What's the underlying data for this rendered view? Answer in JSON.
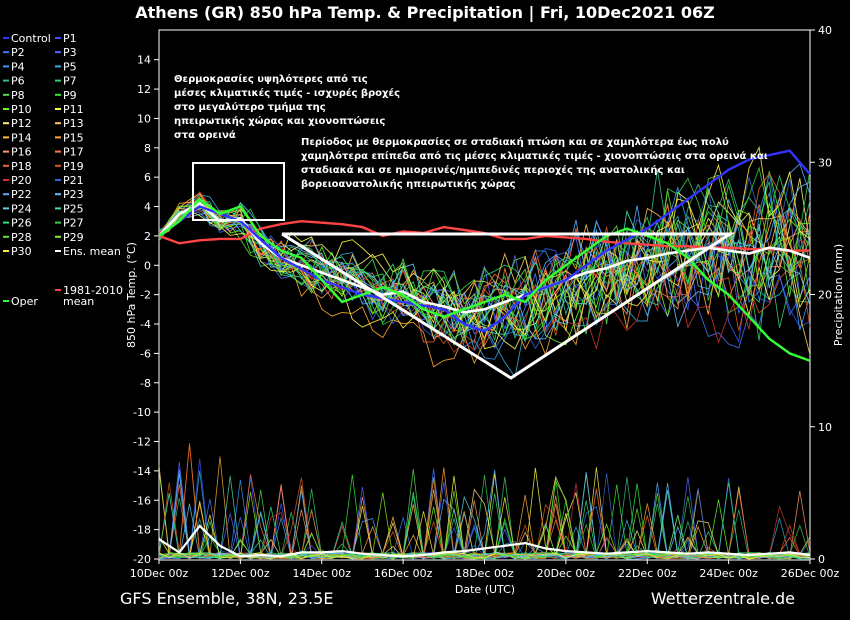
{
  "chart_data": {
    "type": "line",
    "title": "Athens  (GR)  850 hPa Temp. & Precipitation | Fri, 10Dec2021 06Z",
    "xlabel": "Date (UTC)",
    "ylabel": "850 hPa Temp. (°C)",
    "y2label": "Precipitation (mm)",
    "ylim": [
      -20,
      15
    ],
    "y2lim": [
      0,
      40
    ],
    "x_ticks": [
      "10Dec 00z",
      "12Dec 00z",
      "14Dec 00z",
      "16Dec 00z",
      "18Dec 00z",
      "20Dec 00z",
      "22Dec 00z",
      "24Dec 00z",
      "26Dec 00z"
    ],
    "y_ticks": [
      14,
      12,
      10,
      8,
      6,
      4,
      2,
      0,
      -2,
      -4,
      -6,
      -8,
      -10,
      -12,
      -14,
      -16,
      -18,
      -20
    ],
    "y2_ticks": [
      40,
      30,
      20,
      10,
      0
    ],
    "grid": false,
    "legend_position": "left",
    "legend": [
      {
        "name": "Control",
        "color": "#3333ff"
      },
      {
        "name": "P1",
        "color": "#3355ff"
      },
      {
        "name": "P2",
        "color": "#4477ff"
      },
      {
        "name": "P3",
        "color": "#5566ff"
      },
      {
        "name": "P4",
        "color": "#3399ff"
      },
      {
        "name": "P5",
        "color": "#33aadd"
      },
      {
        "name": "P6",
        "color": "#33bb88"
      },
      {
        "name": "P7",
        "color": "#33cc66"
      },
      {
        "name": "P8",
        "color": "#55dd55"
      },
      {
        "name": "P9",
        "color": "#33ee33"
      },
      {
        "name": "P10",
        "color": "#66ff22"
      },
      {
        "name": "P11",
        "color": "#ffff44"
      },
      {
        "name": "P12",
        "color": "#ffee77"
      },
      {
        "name": "P13",
        "color": "#ffcc55"
      },
      {
        "name": "P14",
        "color": "#ffbb44"
      },
      {
        "name": "P15",
        "color": "#ffaa33"
      },
      {
        "name": "P16",
        "color": "#ff9966"
      },
      {
        "name": "P17",
        "color": "#ff7744"
      },
      {
        "name": "P18",
        "color": "#ee6633"
      },
      {
        "name": "P19",
        "color": "#dd5522"
      },
      {
        "name": "P20",
        "color": "#cc3333"
      },
      {
        "name": "P21",
        "color": "#3366cc"
      },
      {
        "name": "P22",
        "color": "#55aaff"
      },
      {
        "name": "P23",
        "color": "#66bbff"
      },
      {
        "name": "P24",
        "color": "#66ccee"
      },
      {
        "name": "P25",
        "color": "#44ddaa"
      },
      {
        "name": "P26",
        "color": "#33dd77"
      },
      {
        "name": "P27",
        "color": "#33cc44"
      },
      {
        "name": "P28",
        "color": "#66dd33"
      },
      {
        "name": "P29",
        "color": "#88ee22"
      },
      {
        "name": "P30",
        "color": "#ffee44"
      },
      {
        "name": "Ens. mean",
        "color": "#ffffff"
      },
      {
        "name": "1981-2010 mean",
        "color": "#ff4444"
      },
      {
        "name": "Oper",
        "color": "#33ff33"
      }
    ],
    "series": [
      {
        "name": "1981-2010 mean",
        "unit": "°C",
        "values": [
          [
            0,
            2
          ],
          [
            0.5,
            1.5
          ],
          [
            1,
            1.7
          ],
          [
            1.5,
            1.8
          ],
          [
            2,
            1.8
          ],
          [
            2.5,
            2.5
          ],
          [
            3,
            2.8
          ],
          [
            3.5,
            3.0
          ],
          [
            4,
            2.9
          ],
          [
            4.5,
            2.8
          ],
          [
            5,
            2.6
          ],
          [
            5.5,
            2.0
          ],
          [
            6,
            2.3
          ],
          [
            6.5,
            2.2
          ],
          [
            7,
            2.6
          ],
          [
            7.5,
            2.4
          ],
          [
            8,
            2.2
          ],
          [
            8.5,
            1.8
          ],
          [
            9,
            1.8
          ],
          [
            9.5,
            2.0
          ],
          [
            10,
            1.9
          ],
          [
            10.5,
            1.8
          ],
          [
            11,
            1.6
          ],
          [
            11.5,
            1.5
          ],
          [
            12,
            1.4
          ],
          [
            12.5,
            1.3
          ],
          [
            13,
            1.3
          ],
          [
            13.5,
            1.2
          ],
          [
            14,
            1.2
          ],
          [
            14.5,
            1.1
          ],
          [
            15,
            1.1
          ],
          [
            15.5,
            1.0
          ],
          [
            16,
            1.0
          ]
        ]
      },
      {
        "name": "Ens. mean",
        "unit": "°C",
        "values": [
          [
            0,
            2.0
          ],
          [
            0.5,
            3.5
          ],
          [
            1,
            4.2
          ],
          [
            1.5,
            3.0
          ],
          [
            2,
            3.2
          ],
          [
            2.5,
            1.5
          ],
          [
            3,
            0.5
          ],
          [
            3.5,
            0
          ],
          [
            4,
            -0.5
          ],
          [
            4.5,
            -1.0
          ],
          [
            5,
            -1.5
          ],
          [
            5.5,
            -2.0
          ],
          [
            6,
            -1.8
          ],
          [
            6.5,
            -2.5
          ],
          [
            7,
            -2.8
          ],
          [
            7.5,
            -3.2
          ],
          [
            8,
            -3.0
          ],
          [
            8.5,
            -2.5
          ],
          [
            9,
            -2.0
          ],
          [
            9.5,
            -1.5
          ],
          [
            10,
            -1.0
          ],
          [
            10.5,
            -0.5
          ],
          [
            11,
            -0.2
          ],
          [
            11.5,
            0.3
          ],
          [
            12,
            0.5
          ],
          [
            12.5,
            0.8
          ],
          [
            13,
            1.0
          ],
          [
            13.5,
            1.2
          ],
          [
            14,
            1.0
          ],
          [
            14.5,
            0.8
          ],
          [
            15,
            1.2
          ],
          [
            15.5,
            1.0
          ],
          [
            16,
            0.5
          ]
        ]
      },
      {
        "name": "Control",
        "unit": "°C",
        "values": [
          [
            0,
            2
          ],
          [
            1,
            4
          ],
          [
            2,
            3
          ],
          [
            3,
            0.5
          ],
          [
            4,
            -1.0
          ],
          [
            5,
            -2.0
          ],
          [
            6,
            -2.5
          ],
          [
            7,
            -3.0
          ],
          [
            7.5,
            -4.0
          ],
          [
            8,
            -4.5
          ],
          [
            8.5,
            -3.5
          ],
          [
            9,
            -2.0
          ],
          [
            10,
            -1.0
          ],
          [
            11,
            1.0
          ],
          [
            12,
            2.5
          ],
          [
            12.5,
            3.5
          ],
          [
            13,
            4.5
          ],
          [
            13.5,
            5.5
          ],
          [
            14,
            6.5
          ],
          [
            14.5,
            7.2
          ],
          [
            15,
            7.5
          ],
          [
            15.5,
            7.8
          ],
          [
            16,
            6.2
          ]
        ]
      },
      {
        "name": "Oper",
        "unit": "°C",
        "values": [
          [
            0,
            2
          ],
          [
            0.5,
            3
          ],
          [
            1,
            4.5
          ],
          [
            1.5,
            3.5
          ],
          [
            2,
            4.0
          ],
          [
            2.5,
            2.0
          ],
          [
            3,
            1.0
          ],
          [
            3.5,
            0.5
          ],
          [
            4,
            -1.0
          ],
          [
            4.5,
            -2.5
          ],
          [
            5,
            -2.0
          ],
          [
            5.5,
            -1.5
          ],
          [
            6,
            -2.0
          ],
          [
            6.5,
            -3.0
          ],
          [
            7,
            -3.5
          ],
          [
            7.5,
            -3.0
          ],
          [
            8,
            -2.5
          ],
          [
            8.5,
            -2.0
          ],
          [
            9,
            -2.5
          ],
          [
            9.5,
            -1.0
          ],
          [
            10,
            0
          ],
          [
            10.5,
            1.0
          ],
          [
            11,
            2.0
          ],
          [
            11.5,
            2.5
          ],
          [
            12,
            2.0
          ],
          [
            12.5,
            1.5
          ],
          [
            13,
            0.5
          ],
          [
            13.5,
            -1.0
          ],
          [
            14,
            -2.0
          ],
          [
            14.5,
            -3.5
          ],
          [
            15,
            -5.0
          ],
          [
            15.5,
            -6.0
          ],
          [
            16,
            -6.5
          ]
        ]
      }
    ],
    "precipitation_mean": {
      "name": "Ens. mean",
      "unit": "mm",
      "values": [
        [
          0,
          1.5
        ],
        [
          0.5,
          0.5
        ],
        [
          1,
          2.5
        ],
        [
          1.5,
          1.0
        ],
        [
          2,
          0.2
        ],
        [
          2.5,
          0.3
        ],
        [
          3,
          0.2
        ],
        [
          3.5,
          0.5
        ],
        [
          4,
          0.5
        ],
        [
          4.5,
          0.6
        ],
        [
          5,
          0.4
        ],
        [
          5.5,
          0.3
        ],
        [
          6,
          0.2
        ],
        [
          6.5,
          0.3
        ],
        [
          7,
          0.5
        ],
        [
          7.5,
          0.6
        ],
        [
          8,
          0.8
        ],
        [
          8.5,
          1.0
        ],
        [
          9,
          1.2
        ],
        [
          9.5,
          0.8
        ],
        [
          10,
          0.6
        ],
        [
          10.5,
          0.5
        ],
        [
          11,
          0.4
        ],
        [
          11.5,
          0.5
        ],
        [
          12,
          0.6
        ],
        [
          12.5,
          0.5
        ],
        [
          13,
          0.4
        ],
        [
          13.5,
          0.5
        ],
        [
          14,
          0.4
        ],
        [
          14.5,
          0.3
        ],
        [
          15,
          0.4
        ],
        [
          15.5,
          0.5
        ],
        [
          16,
          0.3
        ]
      ]
    },
    "annotations": {
      "note1": [
        "Θερμοκρασίες υψηλότερες από τις",
        "μέσες κλιματικές τιμές - ισχυρές βροχές",
        "στο μεγαλύτερο τμήμα της",
        "ηπειρωτικής χώρας και χιονοπτώσεις",
        "στα ορεινά"
      ],
      "note2": [
        "Περίοδος με θερμοκρασίες σε σταδιακή πτώση και σε χαμηλότερα έως πολύ",
        "χαμηλότερα επίπεδα από τις μέσες κλιματικές τιμές - χιονοπτώσεις στα ορεινά και",
        "σταδιακά και σε ημιορεινές/ημιπεδινές περιοχές της ανατολικής και",
        "βορειοανατολικής ηπειρωτικής χώρας"
      ]
    },
    "footer_left": "GFS Ensemble, 38N, 23.5E",
    "footer_right": "Wetterzentrale.de"
  }
}
